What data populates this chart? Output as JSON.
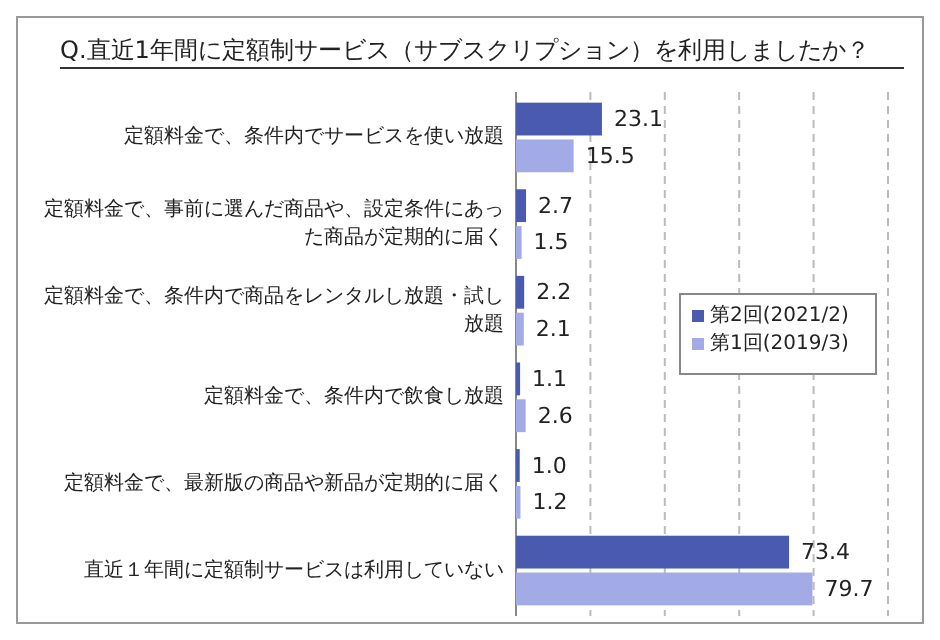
{
  "chart_data": {
    "type": "bar",
    "orientation": "horizontal",
    "title": "Q.直近1年間に定額制サービス（サブスクリプション）を利用しましたか？",
    "categories": [
      "定額料金で、条件内でサービスを使い放題",
      "定額料金で、事前に選んだ商品や、設定条件にあった商品が定期的に届く",
      "定額料金で、条件内で商品をレンタルし放題・試し放題",
      "定額料金で、条件内で飲食し放題",
      "定額料金で、最新版の商品や新品が定期的に届く",
      "直近１年間に定額制サービスは利用していない"
    ],
    "series": [
      {
        "name": "第2回(2021/2)",
        "color": "#4a5aaf",
        "values": [
          23.1,
          2.7,
          2.2,
          1.1,
          1.0,
          73.4
        ],
        "value_labels": [
          "23.1",
          "2.7",
          "2.2",
          "1.1",
          "1.0",
          "73.4"
        ]
      },
      {
        "name": "第1回(2019/3)",
        "color": "#a3abe6",
        "values": [
          15.5,
          1.5,
          2.1,
          2.6,
          1.2,
          79.7
        ],
        "value_labels": [
          "15.5",
          "1.5",
          "2.1",
          "2.6",
          "1.2",
          "79.7"
        ]
      }
    ],
    "xlim": [
      0,
      100
    ],
    "xticks": [
      {
        "value": 0,
        "label": null
      },
      {
        "value": 20,
        "label": null
      },
      {
        "value": 40,
        "label": null
      },
      {
        "value": 60,
        "label": null
      },
      {
        "value": 80,
        "label": null
      },
      {
        "value": 100,
        "label": null
      }
    ],
    "grid": "x",
    "legend": "right",
    "tick_labels": "y"
  }
}
